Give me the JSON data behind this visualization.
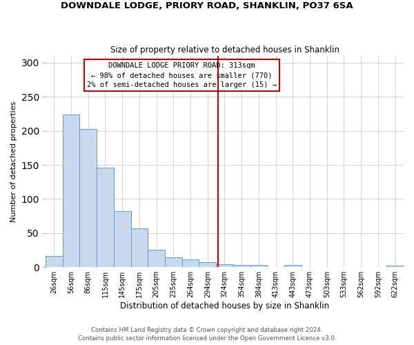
{
  "title1": "DOWNDALE LODGE, PRIORY ROAD, SHANKLIN, PO37 6SA",
  "title2": "Size of property relative to detached houses in Shanklin",
  "xlabel": "Distribution of detached houses by size in Shanklin",
  "ylabel": "Number of detached properties",
  "bin_labels": [
    "26sqm",
    "56sqm",
    "86sqm",
    "115sqm",
    "145sqm",
    "175sqm",
    "205sqm",
    "235sqm",
    "264sqm",
    "294sqm",
    "324sqm",
    "354sqm",
    "384sqm",
    "413sqm",
    "443sqm",
    "473sqm",
    "503sqm",
    "533sqm",
    "562sqm",
    "592sqm",
    "622sqm"
  ],
  "bar_heights": [
    16,
    224,
    203,
    146,
    82,
    57,
    26,
    14,
    11,
    7,
    4,
    3,
    3,
    0,
    3,
    0,
    0,
    0,
    0,
    0,
    2
  ],
  "bar_color": "#c8d9ed",
  "bar_edge_color": "#5b9bd5",
  "vline_color": "#cc0000",
  "annotation_title": "DOWNDALE LODGE PRIORY ROAD: 313sqm",
  "annotation_line1": "← 98% of detached houses are smaller (770)",
  "annotation_line2": "2% of semi-detached houses are larger (15) →",
  "ylim": [
    0,
    310
  ],
  "yticks": [
    0,
    50,
    100,
    150,
    200,
    250,
    300
  ],
  "footer1": "Contains HM Land Registry data © Crown copyright and database right 2024.",
  "footer2": "Contains public sector information licensed under the Open Government Licence v3.0."
}
